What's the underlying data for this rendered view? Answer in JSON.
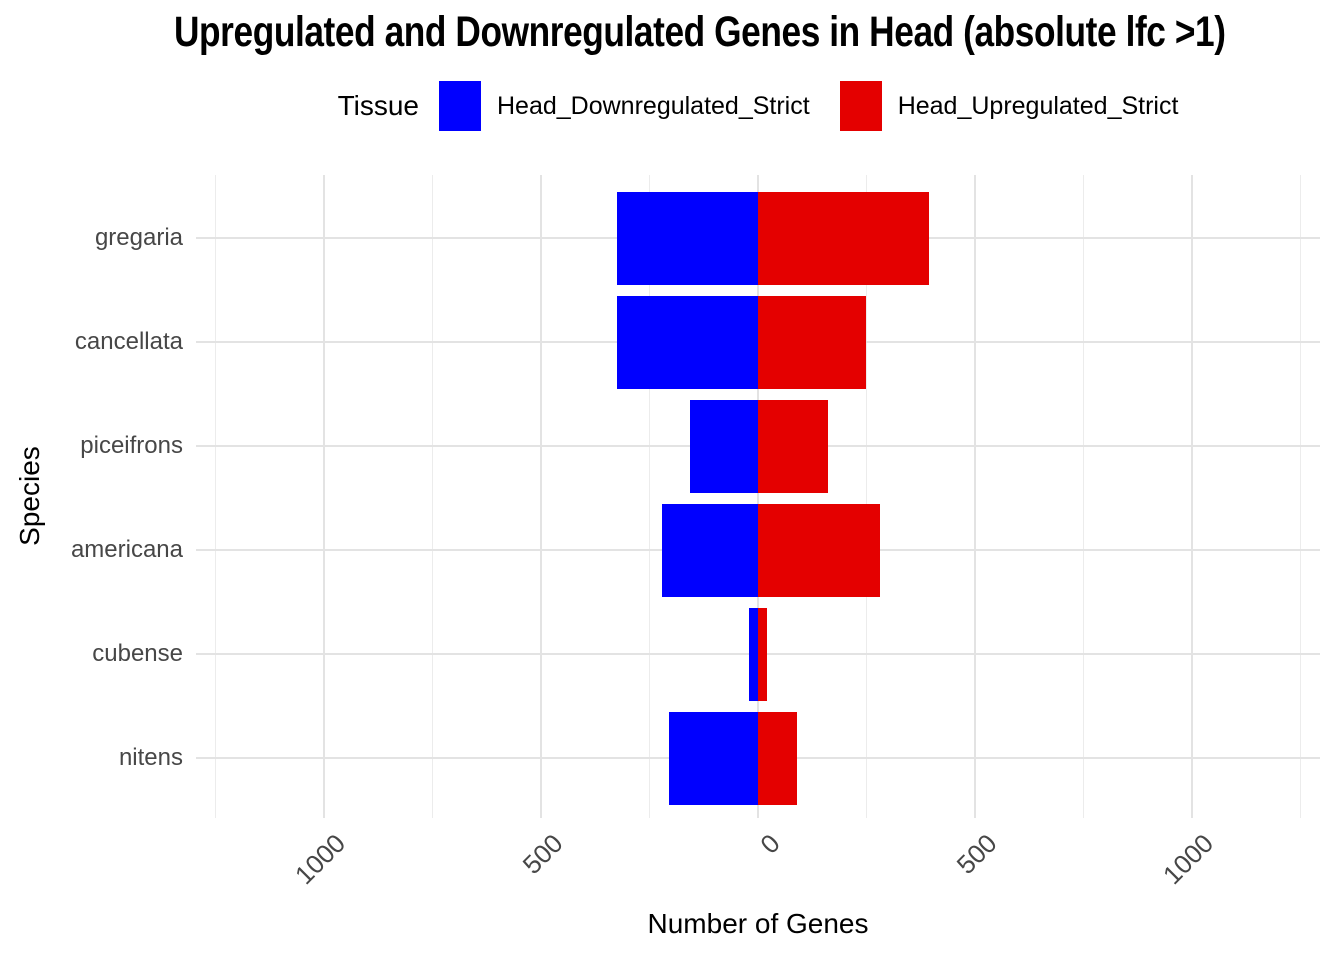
{
  "title": "Upregulated and Downregulated Genes in Head (absolute lfc >1)",
  "legend": {
    "title": "Tissue",
    "items": [
      {
        "label": "Head_Downregulated_Strict",
        "color": "#0000FF"
      },
      {
        "label": "Head_Upregulated_Strict",
        "color": "#E40000"
      }
    ]
  },
  "axes": {
    "x_title": "Number of Genes",
    "y_title": "Species",
    "x_tick_labels": [
      "1000",
      "500",
      "0",
      "500",
      "1000"
    ]
  },
  "colors": {
    "downregulated": "#0000FF",
    "upregulated": "#E40000",
    "grid_major": "#e3e3e3",
    "grid_minor": "#ececec",
    "axis_text": "#474747"
  },
  "chart_data": {
    "type": "bar",
    "orientation": "horizontal-diverging",
    "title": "Upregulated and Downregulated Genes in Head (absolute lfc >1)",
    "xlabel": "Number of Genes",
    "ylabel": "Species",
    "categories": [
      "gregaria",
      "cancellata",
      "piceifrons",
      "americana",
      "cubense",
      "nitens"
    ],
    "series": [
      {
        "name": "Head_Downregulated_Strict",
        "color": "#0000FF",
        "values": [
          -326,
          -324,
          -156,
          -222,
          -20,
          -204
        ]
      },
      {
        "name": "Head_Upregulated_Strict",
        "color": "#E40000",
        "values": [
          395,
          248,
          162,
          282,
          21,
          89
        ]
      }
    ],
    "xlim": [
      -1295,
      1295
    ],
    "x_major_ticks": [
      -1000,
      -500,
      0,
      500,
      1000
    ],
    "x_minor_ticks": [
      -1250,
      -750,
      -250,
      250,
      750,
      1250
    ],
    "grid": true,
    "legend_position": "top"
  }
}
